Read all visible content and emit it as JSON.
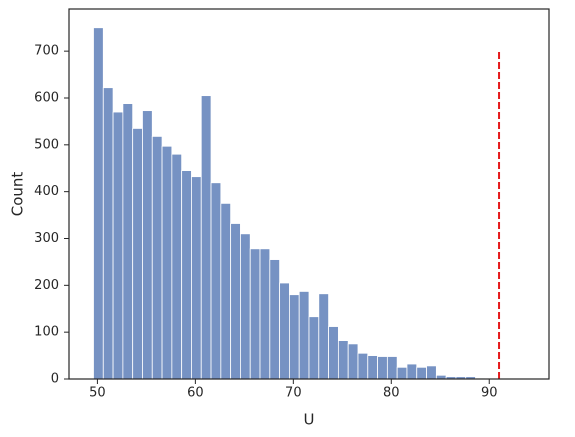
{
  "chart_data": {
    "type": "histogram",
    "x_label": "U",
    "y_label": "Count",
    "bins": [
      49.6,
      50.6,
      51.6,
      52.6,
      53.6,
      54.6,
      55.6,
      56.6,
      57.6,
      58.6,
      59.6,
      60.6,
      61.6,
      62.6,
      63.6,
      64.6,
      65.6,
      66.6,
      67.6,
      68.6,
      69.6,
      70.6,
      71.6,
      72.6,
      73.6,
      74.6,
      75.6,
      76.6,
      77.6,
      78.6,
      79.6,
      80.6,
      81.6,
      82.6,
      83.6,
      84.6,
      85.6,
      86.6,
      87.6,
      88.6,
      89.6
    ],
    "values": [
      750,
      622,
      570,
      588,
      535,
      573,
      518,
      497,
      480,
      445,
      432,
      605,
      419,
      375,
      332,
      310,
      278,
      278,
      255,
      205,
      180,
      187,
      133,
      182,
      112,
      82,
      75,
      55,
      50,
      48,
      48,
      25,
      32,
      25,
      28,
      8,
      5,
      5,
      5,
      2
    ],
    "color": "#7692c3",
    "vline": {
      "x": 91,
      "ymin": 0,
      "ymax": 700,
      "color": "#e41a1c"
    },
    "xlim": [
      47.1,
      96.1
    ],
    "ylim": [
      0,
      790
    ],
    "xticks": [
      50,
      60,
      70,
      80,
      90
    ],
    "yticks": [
      0,
      100,
      200,
      300,
      400,
      500,
      600,
      700
    ]
  }
}
